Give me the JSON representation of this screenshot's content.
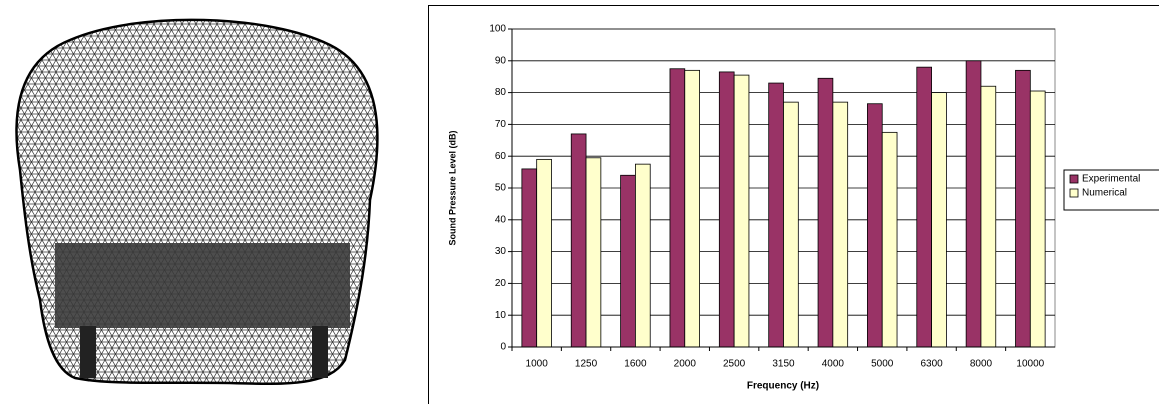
{
  "chart_data": {
    "type": "bar",
    "x_label": "Frequency (Hz)",
    "y_label": "Sound Pressure Level (dB)",
    "categories": [
      "1000",
      "1250",
      "1600",
      "2000",
      "2500",
      "3150",
      "4000",
      "5000",
      "6300",
      "8000",
      "10000"
    ],
    "series": [
      {
        "name": "Experimental",
        "color": "#993366",
        "values": [
          56,
          67,
          54,
          87.5,
          86.5,
          83,
          84.5,
          76.5,
          88,
          90,
          87
        ]
      },
      {
        "name": "Numerical",
        "color": "#ffffcc",
        "values": [
          59,
          59.5,
          57.5,
          87,
          85.5,
          77,
          77,
          67.5,
          80,
          82,
          80.5
        ]
      }
    ],
    "ylim": [
      0,
      100
    ],
    "yticks": [
      0,
      10,
      20,
      30,
      40,
      50,
      60,
      70,
      80,
      90,
      100
    ],
    "grid": true,
    "legend": "right"
  }
}
